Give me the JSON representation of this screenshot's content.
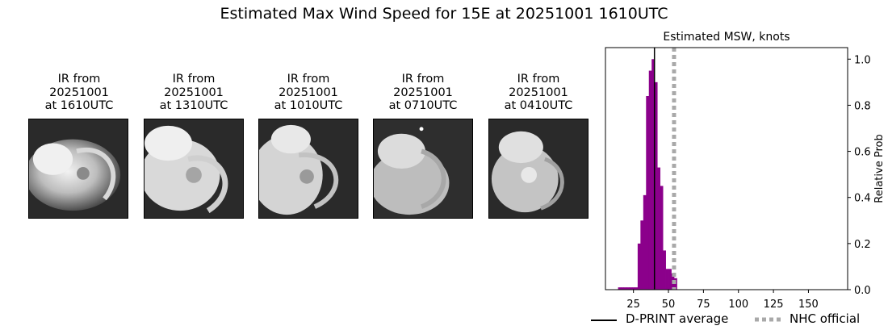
{
  "suptitle": "Estimated Max Wind Speed for 15E at 20251001 1610UTC",
  "panels": [
    {
      "title": "IR from\n20251001\nat 1610UTC"
    },
    {
      "title": "IR from\n20251001\nat 1310UTC"
    },
    {
      "title": "IR from\n20251001\nat 1010UTC"
    },
    {
      "title": "IR from\n20251001\nat 0710UTC"
    },
    {
      "title": "IR from\n20251001\nat 0410UTC"
    }
  ],
  "chart_data": {
    "type": "bar",
    "title": "Estimated MSW, knots",
    "xlabel": "",
    "ylabel": "Relative Prob",
    "xlim": [
      5,
      178
    ],
    "ylim": [
      0,
      1.05
    ],
    "xticks": [
      25,
      50,
      75,
      100,
      125,
      150
    ],
    "yticks": [
      0.0,
      0.2,
      0.4,
      0.6,
      0.8,
      1.0
    ],
    "bin_width": 2,
    "bar_color": "#8b008b",
    "bars": [
      {
        "x": 15,
        "y": 0.01
      },
      {
        "x": 17,
        "y": 0.01
      },
      {
        "x": 19,
        "y": 0.01
      },
      {
        "x": 21,
        "y": 0.01
      },
      {
        "x": 23,
        "y": 0.01
      },
      {
        "x": 25,
        "y": 0.01
      },
      {
        "x": 27,
        "y": 0.01
      },
      {
        "x": 29,
        "y": 0.2
      },
      {
        "x": 31,
        "y": 0.3
      },
      {
        "x": 33,
        "y": 0.41
      },
      {
        "x": 35,
        "y": 0.84
      },
      {
        "x": 37,
        "y": 0.95
      },
      {
        "x": 39,
        "y": 1.0
      },
      {
        "x": 41,
        "y": 0.9
      },
      {
        "x": 43,
        "y": 0.53
      },
      {
        "x": 45,
        "y": 0.45
      },
      {
        "x": 47,
        "y": 0.17
      },
      {
        "x": 49,
        "y": 0.09
      },
      {
        "x": 51,
        "y": 0.09
      },
      {
        "x": 53,
        "y": 0.07
      },
      {
        "x": 55,
        "y": 0.05
      }
    ],
    "dprint_average": 40,
    "nhc_official": 54,
    "legend": [
      {
        "label": "D-PRINT average",
        "style": "solid",
        "color": "#000000"
      },
      {
        "label": "NHC official",
        "style": "dotted",
        "color": "#a9a9a9"
      }
    ]
  }
}
